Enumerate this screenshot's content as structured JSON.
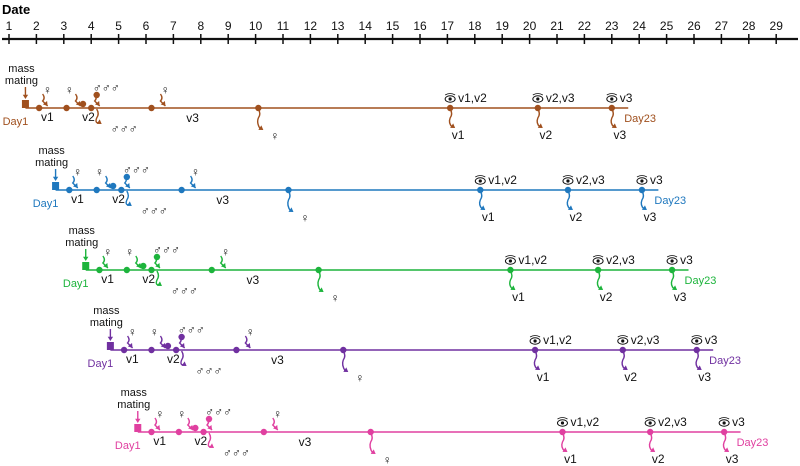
{
  "axis": {
    "title": "Date",
    "days": [
      "1",
      "2",
      "3",
      "4",
      "5",
      "6",
      "7",
      "8",
      "9",
      "10",
      "11",
      "12",
      "13",
      "14",
      "15",
      "16",
      "17",
      "18",
      "19",
      "20",
      "21",
      "22",
      "23",
      "24",
      "25",
      "26",
      "27",
      "28",
      "29"
    ]
  },
  "labels": {
    "mass": "mass",
    "mating": "mating",
    "day1": "Day1",
    "day23": "Day23",
    "v1": "v1",
    "v2": "v2",
    "v3": "v3",
    "v1v2": "v1,v2",
    "v2v3": "v2,v3",
    "female": "♀",
    "males": "♂♂♂",
    "eye": "eye-icon"
  },
  "colors": {
    "axis": "#111111",
    "brown": "#A0501E",
    "blue": "#1F78BE",
    "green": "#1DB43C",
    "purple": "#7030A0",
    "pink": "#E040A0"
  },
  "cohorts": [
    {
      "name": "cohort-brown",
      "color": "brown"
    },
    {
      "name": "cohort-blue",
      "color": "blue"
    },
    {
      "name": "cohort-green",
      "color": "green"
    },
    {
      "name": "cohort-purple",
      "color": "purple"
    },
    {
      "name": "cohort-pink",
      "color": "pink"
    }
  ]
}
